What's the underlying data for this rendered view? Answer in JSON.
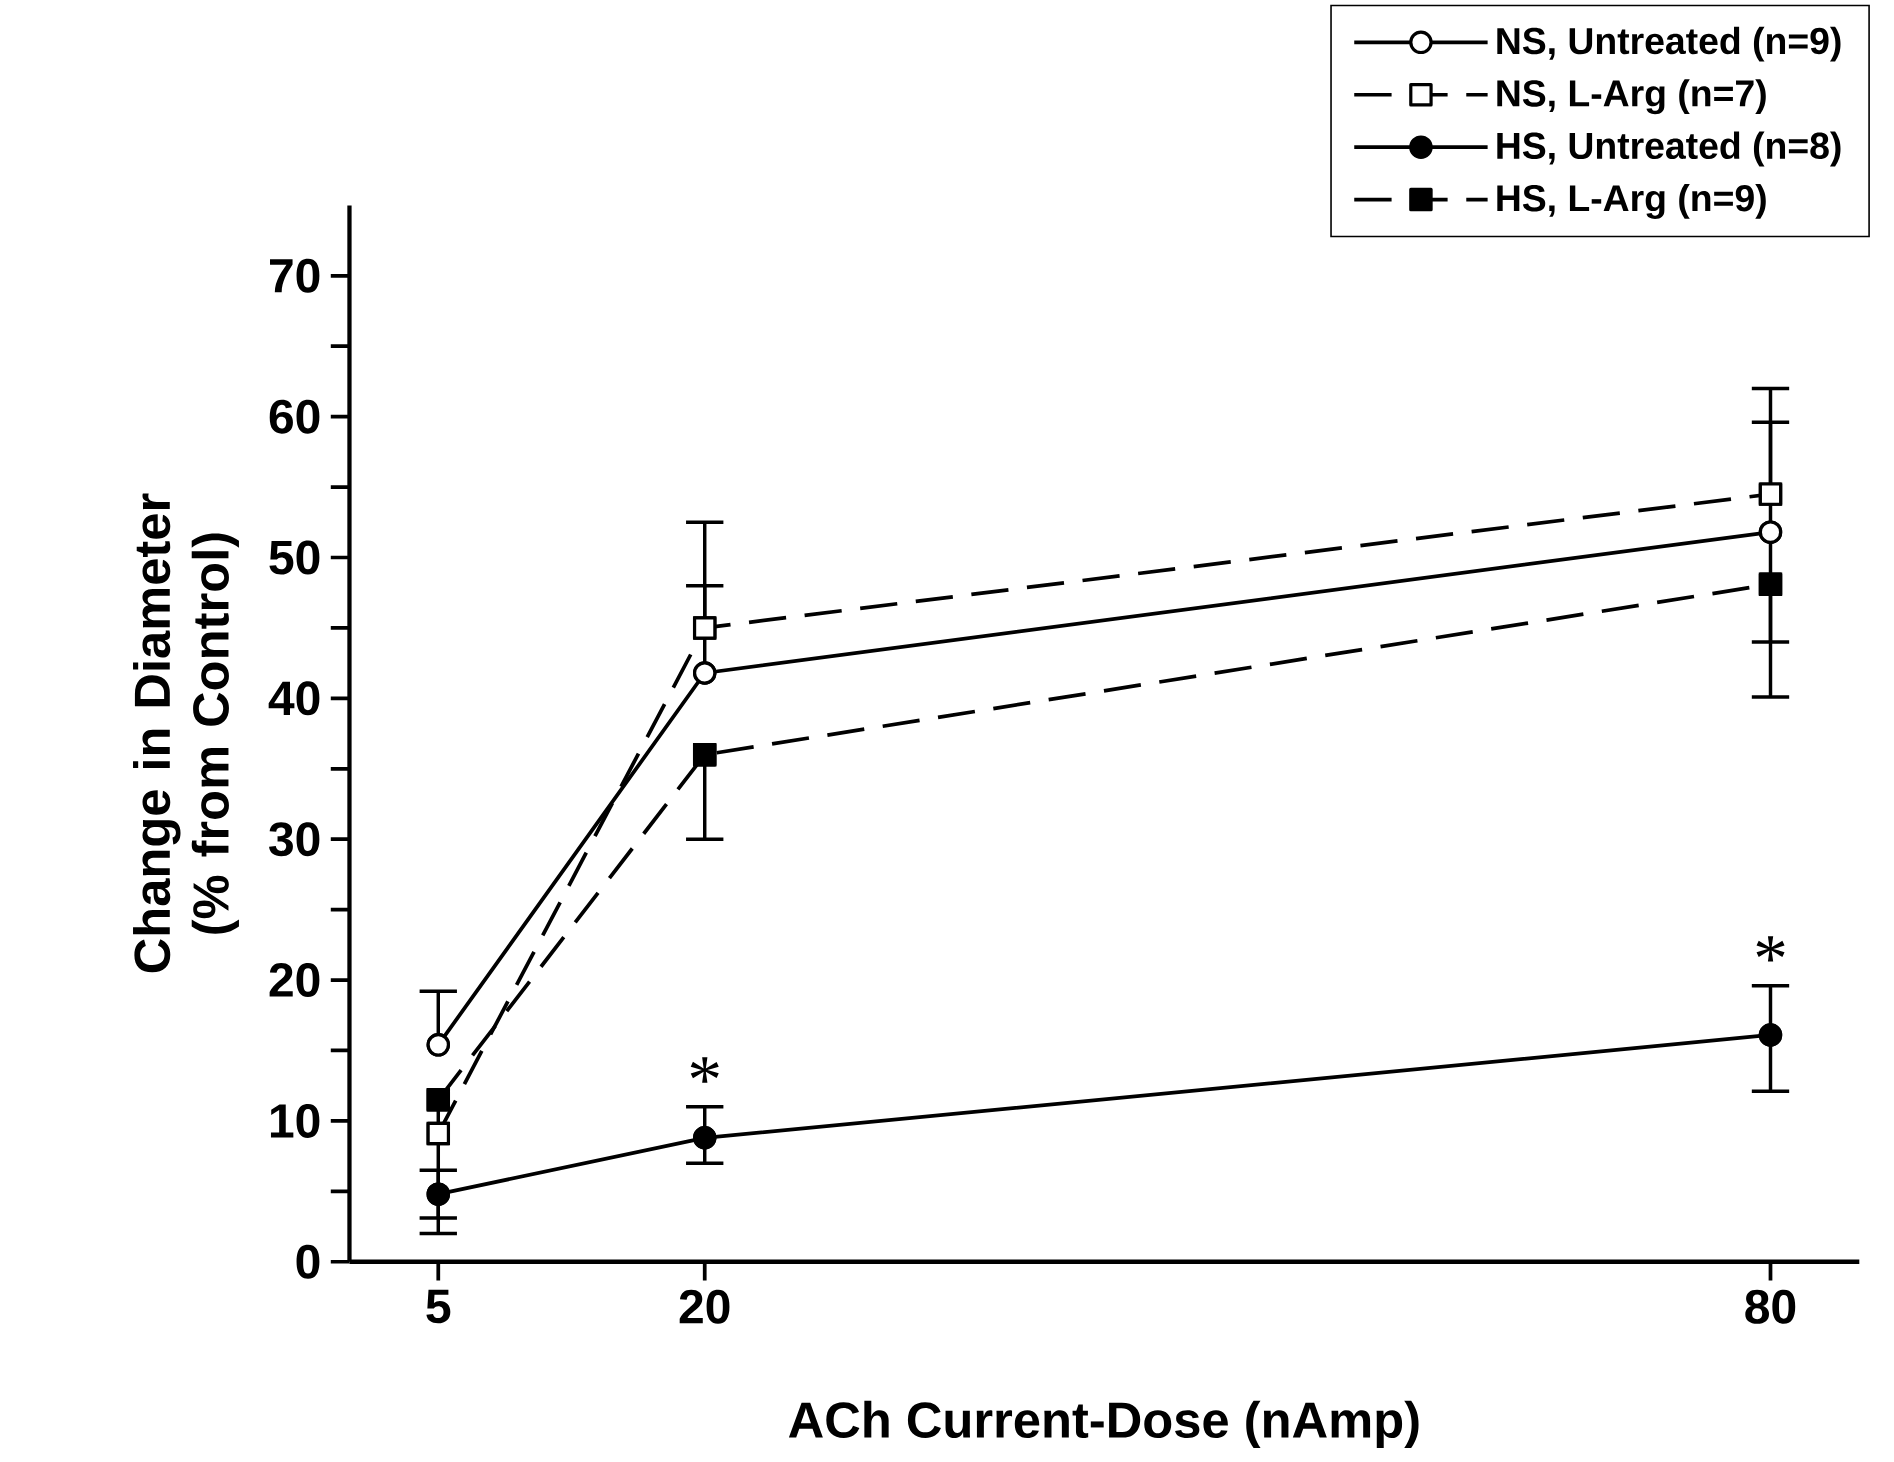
{
  "chart_data": {
    "type": "line",
    "xlabel": "ACh Current-Dose (nAmp)",
    "ylabel": "Change in Diameter (% from Control)",
    "xlim": [
      0,
      85
    ],
    "xticks": [
      5,
      20,
      80
    ],
    "ylim": [
      0,
      75
    ],
    "yticks": [
      0,
      {
        "value": 5,
        "label": null
      },
      10,
      {
        "value": 15,
        "label": null
      },
      20,
      {
        "value": 25,
        "label": null
      },
      30,
      {
        "value": 35,
        "label": null
      },
      40,
      {
        "value": 45,
        "label": null
      },
      50,
      {
        "value": 55,
        "label": null
      },
      60,
      {
        "value": 65,
        "label": null
      },
      70
    ],
    "x": [
      5,
      20,
      80
    ],
    "series": [
      {
        "name": "NS, Untreated (n=9)",
        "color": "#000000",
        "colors": [
          "#ffffff",
          "#ffffff",
          "#ffffff"
        ],
        "marker": "circle",
        "line_style": "solid",
        "values": [
          15.4,
          41.8,
          51.8
        ],
        "errors": [
          [
            15.4,
            19.2
          ],
          [
            41.8,
            48
          ],
          [
            44,
            59.6
          ]
        ]
      },
      {
        "name": "NS, L-Arg (n=7)",
        "color": "#000000",
        "colors": [
          "#ffffff",
          "#ffffff",
          "#ffffff"
        ],
        "marker": "square",
        "line_style": "dashed",
        "values": [
          9.1,
          45,
          54.5
        ],
        "errors": [
          null,
          [
            45,
            52.5
          ],
          [
            54.5,
            62
          ]
        ]
      },
      {
        "name": "HS, Untreated (n=8)",
        "color": "#000000",
        "colors": [
          "#000000",
          "#000000",
          "#000000"
        ],
        "marker": "circle",
        "line_style": "solid",
        "values": [
          4.8,
          8.8,
          16.1
        ],
        "errors": [
          [
            3.1,
            6.5
          ],
          [
            7,
            11
          ],
          [
            12.1,
            19.6
          ]
        ]
      },
      {
        "name": "HS, L-Arg (n=9)",
        "color": "#000000",
        "colors": [
          "#000000",
          "#000000",
          "#000000"
        ],
        "marker": "square",
        "line_style": "dashed",
        "values": [
          11.5,
          36,
          48.1
        ],
        "errors": [
          [
            2,
            11.5
          ],
          [
            30,
            36
          ],
          [
            40.1,
            48.1
          ]
        ]
      }
    ],
    "annotations": [
      {
        "text": "*",
        "x": 20,
        "y": 8.8
      },
      {
        "text": "*",
        "x": 80,
        "y": 16.1
      }
    ],
    "legend": "top right"
  }
}
